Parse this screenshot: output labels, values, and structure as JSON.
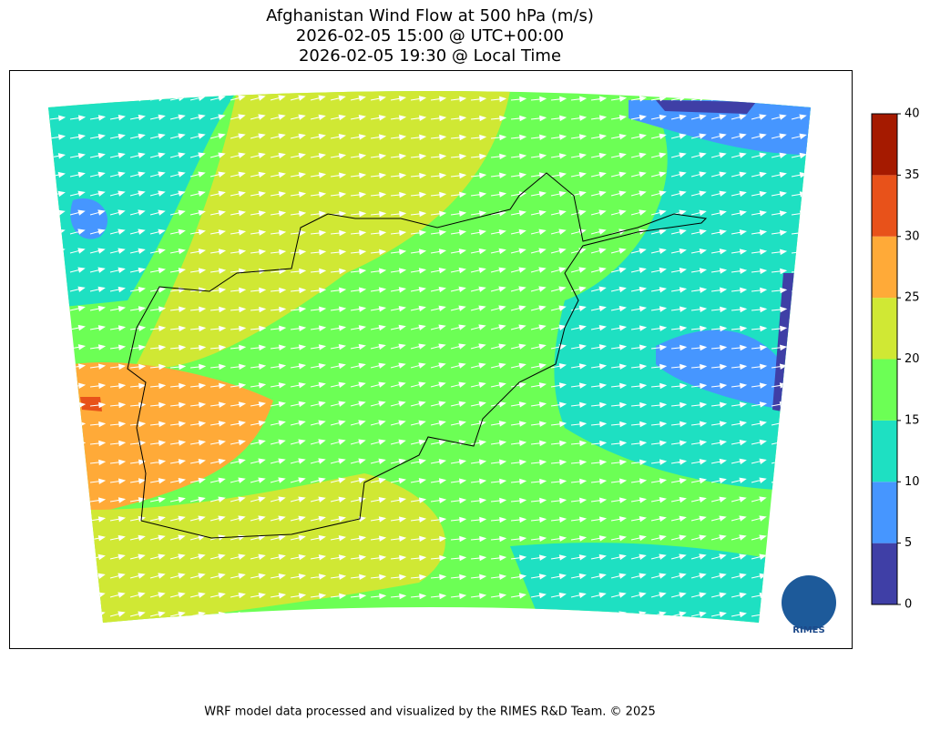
{
  "title": [
    "Afghanistan Wind Flow at 500 hPa (m/s)",
    "2026-02-05 15:00 @ UTC+00:00",
    "2026-02-05 19:30 @ Local Time"
  ],
  "colorbar": {
    "ticks": [
      0,
      5,
      10,
      15,
      20,
      25,
      30,
      35,
      40
    ],
    "colors": [
      "#3f3fa6",
      "#4696ff",
      "#1ee0c2",
      "#6cff55",
      "#d0e834",
      "#ffaa38",
      "#e8521a",
      "#a51a00"
    ]
  },
  "logo": "RIMES",
  "footer": "WRF model data processed and visualized by the RIMES R&D Team. © 2025"
}
